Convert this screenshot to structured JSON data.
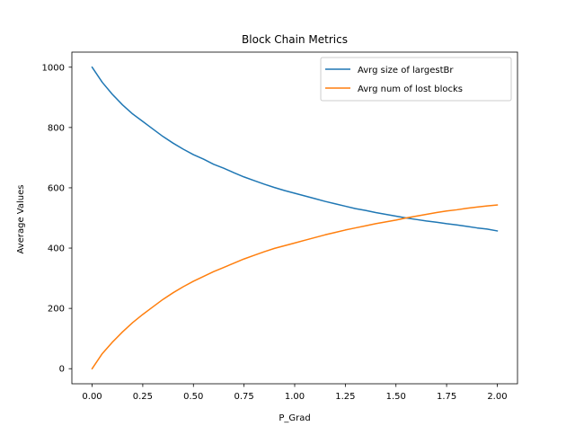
{
  "chart_data": {
    "type": "line",
    "title": "Block Chain Metrics",
    "xlabel": "P_Grad",
    "ylabel": "Average Values",
    "xlim": [
      -0.1,
      2.1
    ],
    "ylim": [
      -50,
      1050
    ],
    "xticks": [
      0.0,
      0.25,
      0.5,
      0.75,
      1.0,
      1.25,
      1.5,
      1.75,
      2.0
    ],
    "xtick_labels": [
      "0.00",
      "0.25",
      "0.50",
      "0.75",
      "1.00",
      "1.25",
      "1.50",
      "1.75",
      "2.00"
    ],
    "yticks": [
      0,
      200,
      400,
      600,
      800,
      1000
    ],
    "ytick_labels": [
      "0",
      "200",
      "400",
      "600",
      "800",
      "1000"
    ],
    "grid": false,
    "legend_position": "top-right",
    "x": [
      0.0,
      0.05,
      0.1,
      0.15,
      0.2,
      0.25,
      0.3,
      0.35,
      0.4,
      0.45,
      0.5,
      0.55,
      0.6,
      0.65,
      0.7,
      0.75,
      0.8,
      0.85,
      0.9,
      0.95,
      1.0,
      1.05,
      1.1,
      1.15,
      1.2,
      1.25,
      1.3,
      1.35,
      1.4,
      1.45,
      1.5,
      1.55,
      1.6,
      1.65,
      1.7,
      1.75,
      1.8,
      1.85,
      1.9,
      1.95,
      2.0
    ],
    "series": [
      {
        "name": "Avrg size of largestBr",
        "color": "#1f77b4",
        "values": [
          1000,
          950,
          910,
          875,
          845,
          820,
          795,
          770,
          748,
          728,
          710,
          695,
          678,
          665,
          650,
          636,
          624,
          612,
          601,
          591,
          582,
          573,
          564,
          555,
          547,
          539,
          531,
          525,
          518,
          512,
          506,
          500,
          495,
          490,
          486,
          481,
          477,
          472,
          467,
          463,
          457
        ]
      },
      {
        "name": "Avrg num of lost blocks",
        "color": "#ff7f0e",
        "values": [
          0,
          50,
          88,
          122,
          153,
          180,
          205,
          230,
          252,
          272,
          290,
          306,
          322,
          336,
          350,
          364,
          376,
          388,
          399,
          408,
          417,
          426,
          435,
          444,
          452,
          460,
          467,
          474,
          481,
          487,
          493,
          500,
          506,
          512,
          518,
          523,
          527,
          532,
          536,
          540,
          543
        ]
      }
    ]
  }
}
